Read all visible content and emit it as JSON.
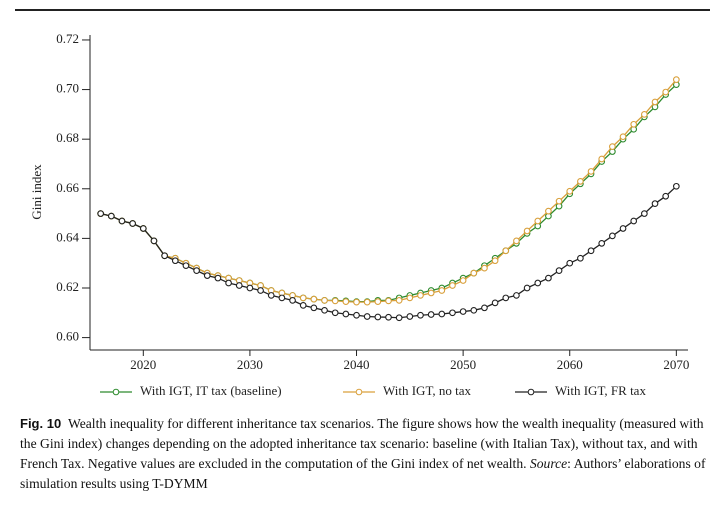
{
  "chart_data": {
    "type": "line",
    "ylabel": "Gini index",
    "x": [
      2016,
      2017,
      2018,
      2019,
      2020,
      2021,
      2022,
      2023,
      2024,
      2025,
      2026,
      2027,
      2028,
      2029,
      2030,
      2031,
      2032,
      2033,
      2034,
      2035,
      2036,
      2037,
      2038,
      2039,
      2040,
      2041,
      2042,
      2043,
      2044,
      2045,
      2046,
      2047,
      2048,
      2049,
      2050,
      2051,
      2052,
      2053,
      2054,
      2055,
      2056,
      2057,
      2058,
      2059,
      2060,
      2061,
      2062,
      2063,
      2064,
      2065,
      2066,
      2067,
      2068,
      2069,
      2070
    ],
    "series": [
      {
        "name": "With IGT, IT tax (baseline)",
        "color": "#2e8b2e",
        "values": [
          0.65,
          0.649,
          0.647,
          0.646,
          0.644,
          0.639,
          0.633,
          0.632,
          0.63,
          0.628,
          0.626,
          0.625,
          0.624,
          0.623,
          0.622,
          0.621,
          0.619,
          0.618,
          0.617,
          0.616,
          0.6155,
          0.615,
          0.615,
          0.6148,
          0.6145,
          0.6145,
          0.615,
          0.615,
          0.616,
          0.617,
          0.618,
          0.619,
          0.62,
          0.622,
          0.624,
          0.626,
          0.629,
          0.632,
          0.635,
          0.638,
          0.642,
          0.645,
          0.649,
          0.653,
          0.658,
          0.662,
          0.666,
          0.671,
          0.675,
          0.68,
          0.684,
          0.689,
          0.693,
          0.698,
          0.702
        ]
      },
      {
        "name": "With IGT, no tax",
        "color": "#d9a03c",
        "values": [
          0.65,
          0.649,
          0.647,
          0.646,
          0.644,
          0.639,
          0.633,
          0.632,
          0.63,
          0.628,
          0.626,
          0.625,
          0.624,
          0.623,
          0.622,
          0.621,
          0.619,
          0.618,
          0.617,
          0.616,
          0.6155,
          0.615,
          0.6148,
          0.6145,
          0.6143,
          0.6143,
          0.6145,
          0.6148,
          0.615,
          0.616,
          0.617,
          0.618,
          0.619,
          0.621,
          0.623,
          0.626,
          0.628,
          0.631,
          0.635,
          0.639,
          0.643,
          0.647,
          0.651,
          0.655,
          0.659,
          0.663,
          0.667,
          0.672,
          0.677,
          0.681,
          0.686,
          0.69,
          0.695,
          0.699,
          0.704
        ]
      },
      {
        "name": "With IGT, FR tax",
        "color": "#222222",
        "values": [
          0.65,
          0.649,
          0.647,
          0.646,
          0.644,
          0.639,
          0.633,
          0.631,
          0.629,
          0.627,
          0.625,
          0.624,
          0.622,
          0.621,
          0.62,
          0.619,
          0.617,
          0.616,
          0.615,
          0.613,
          0.612,
          0.611,
          0.61,
          0.6095,
          0.609,
          0.6085,
          0.6083,
          0.6082,
          0.608,
          0.6085,
          0.609,
          0.6093,
          0.6095,
          0.61,
          0.6105,
          0.611,
          0.612,
          0.614,
          0.616,
          0.617,
          0.62,
          0.622,
          0.624,
          0.627,
          0.63,
          0.632,
          0.635,
          0.638,
          0.641,
          0.644,
          0.647,
          0.65,
          0.654,
          0.657,
          0.661
        ]
      }
    ],
    "xlim": [
      2015,
      2071
    ],
    "xticks": [
      2020,
      2030,
      2040,
      2050,
      2060,
      2070
    ],
    "ylim": [
      0.595,
      0.722
    ],
    "yticks": [
      {
        "value": 0.6,
        "label": "0.60"
      },
      {
        "value": 0.62,
        "label": "0.62"
      },
      {
        "value": 0.64,
        "label": "0.64"
      },
      {
        "value": 0.66,
        "label": "0.66"
      },
      {
        "value": 0.68,
        "label": "0.68"
      },
      {
        "value": 0.7,
        "label": "0.70"
      },
      {
        "value": 0.72,
        "label": "0.72"
      }
    ],
    "legend": "bottom"
  },
  "caption": {
    "label": "Fig. 10",
    "text": "Wealth inequality for different inheritance tax scenarios. The figure shows how the wealth inequality (measured with the Gini index) changes depending on the adopted inheritance tax scenario: baseline (with Italian Tax), without tax, and with French Tax. Negative values are excluded in the computation of the Gini index of net wealth.",
    "source_label": "Source",
    "source_text": ": Authors’ elaborations of simulation results using T-DYMM"
  }
}
